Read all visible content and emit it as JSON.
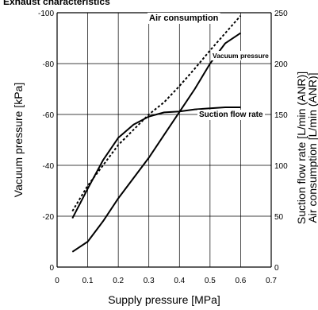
{
  "chart_data": {
    "type": "line",
    "title": "Exhaust characteristics",
    "xlabel": "Supply pressure [MPa]",
    "ylabel_left": "Vacuum pressure [kPa]",
    "ylabel_right": [
      "Suction flow rate [L/min (ANR)]",
      "Air consumption [L/min (ANR)]"
    ],
    "xlim": [
      0,
      0.7
    ],
    "xticks": [
      "0",
      "0.1",
      "0.2",
      "0.3",
      "0.4",
      "0.5",
      "0.6",
      "0.7"
    ],
    "xtick_values": [
      0,
      0.1,
      0.2,
      0.3,
      0.4,
      0.5,
      0.6,
      0.7
    ],
    "ylim_left": [
      0,
      -100
    ],
    "yticks_left": [
      "0",
      "-20",
      "-40",
      "-60",
      "-80",
      "-100"
    ],
    "ytick_left_values": [
      0,
      -20,
      -40,
      -60,
      -80,
      -100
    ],
    "ylim_right": [
      0,
      250
    ],
    "yticks_right": [
      "0",
      "50",
      "100",
      "150",
      "200",
      "250"
    ],
    "ytick_right_values": [
      0,
      50,
      100,
      150,
      200,
      250
    ],
    "grid": true,
    "series": [
      {
        "name": "Air consumption",
        "axis": "right",
        "style": "dashed",
        "x": [
          0.05,
          0.1,
          0.15,
          0.2,
          0.25,
          0.3,
          0.35,
          0.4,
          0.45,
          0.5,
          0.55,
          0.6
        ],
        "y": [
          55,
          80,
          100,
          120,
          135,
          150,
          162,
          178,
          195,
          213,
          230,
          247
        ]
      },
      {
        "name": "Vacuum pressure",
        "axis": "left",
        "style": "solid",
        "x": [
          0.05,
          0.1,
          0.15,
          0.2,
          0.25,
          0.3,
          0.35,
          0.4,
          0.45,
          0.5,
          0.55,
          0.6
        ],
        "y": [
          -6,
          -10,
          -18,
          -27,
          -35,
          -43,
          -52,
          -61,
          -70,
          -80,
          -88,
          -92
        ]
      },
      {
        "name": "Suction flow rate",
        "axis": "right",
        "style": "solid",
        "x": [
          0.05,
          0.1,
          0.15,
          0.2,
          0.25,
          0.3,
          0.35,
          0.4,
          0.45,
          0.5,
          0.55,
          0.6
        ],
        "y": [
          48,
          77,
          105,
          127,
          140,
          148,
          152,
          153,
          155,
          156,
          157,
          157
        ]
      }
    ],
    "annotations": [
      {
        "text": "Air consumption",
        "series": "Air consumption"
      },
      {
        "text": "Vacuum pressure",
        "series": "Vacuum pressure"
      },
      {
        "text": "Suction flow rate",
        "series": "Suction flow rate"
      }
    ]
  }
}
